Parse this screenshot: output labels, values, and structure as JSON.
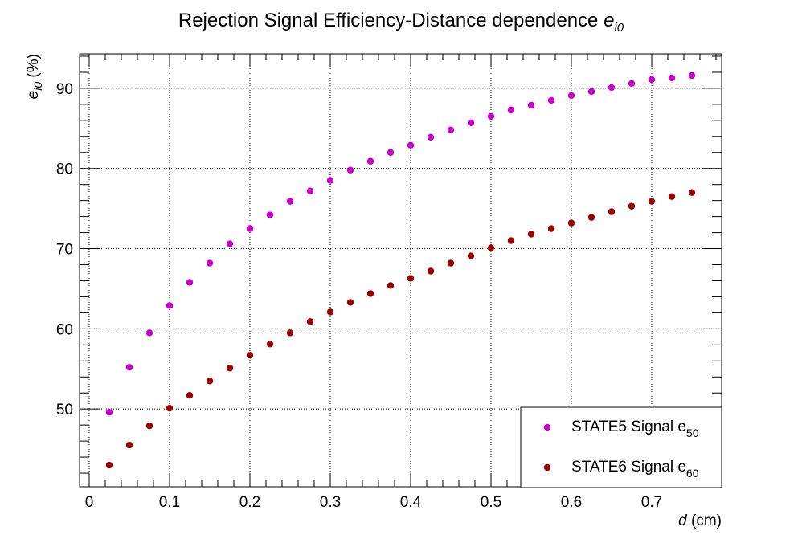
{
  "chart_data": {
    "type": "scatter",
    "title": "Rejection Signal Efficiency-Distance dependence",
    "title_symbol": "e",
    "title_symbol_sub": "i0",
    "xlabel_var": "d",
    "xlabel_unit": "(cm)",
    "ylabel_var": "e",
    "ylabel_sub": "i0",
    "ylabel_unit": "(%)",
    "xlim": [
      -0.012,
      0.787
    ],
    "ylim": [
      40.3,
      94.3
    ],
    "xticks": [
      0,
      0.1,
      0.2,
      0.3,
      0.4,
      0.5,
      0.6,
      0.7
    ],
    "xtick_labels": [
      "0",
      "0.1",
      "0.2",
      "0.3",
      "0.4",
      "0.5",
      "0.6",
      "0.7"
    ],
    "yticks": [
      50,
      60,
      70,
      80,
      90
    ],
    "ytick_labels": [
      "50",
      "60",
      "70",
      "80",
      "90"
    ],
    "grid": true,
    "legend_position": "bottom-right",
    "x": [
      0.025,
      0.05,
      0.075,
      0.1,
      0.125,
      0.15,
      0.175,
      0.2,
      0.225,
      0.25,
      0.275,
      0.3,
      0.325,
      0.35,
      0.375,
      0.4,
      0.425,
      0.45,
      0.475,
      0.5,
      0.525,
      0.55,
      0.575,
      0.6,
      0.625,
      0.65,
      0.675,
      0.7,
      0.725,
      0.75
    ],
    "series": [
      {
        "name": "STATE5 Signal e",
        "name_sub": "50",
        "color": "#cc00cc",
        "values": [
          49.6,
          55.2,
          59.5,
          62.9,
          65.8,
          68.2,
          70.6,
          72.5,
          74.2,
          75.9,
          77.2,
          78.5,
          79.8,
          80.9,
          82.0,
          82.9,
          83.9,
          84.8,
          85.7,
          86.5,
          87.3,
          87.9,
          88.5,
          89.1,
          89.6,
          90.1,
          90.6,
          91.1,
          91.3,
          91.6
        ]
      },
      {
        "name": "STATE6 Signal e",
        "name_sub": "60",
        "color": "#990000",
        "values": [
          43.0,
          45.5,
          47.9,
          50.1,
          51.7,
          53.5,
          55.1,
          56.7,
          58.1,
          59.5,
          60.9,
          62.1,
          63.3,
          64.4,
          65.4,
          66.3,
          67.2,
          68.2,
          69.1,
          70.1,
          71.0,
          71.8,
          72.5,
          73.2,
          73.9,
          74.6,
          75.3,
          75.9,
          76.5,
          77.0
        ]
      }
    ]
  }
}
